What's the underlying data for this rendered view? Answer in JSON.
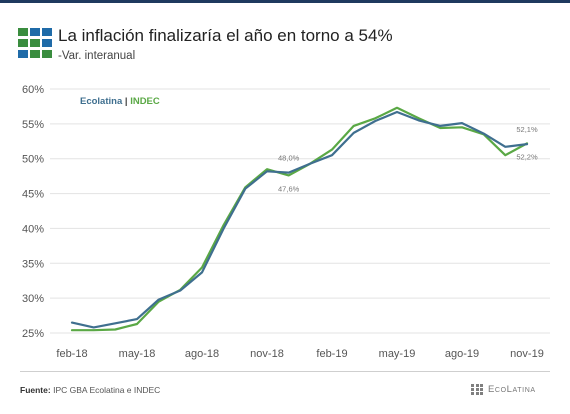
{
  "header": {
    "title": "La inflación finalizaría el año en torno a 54%",
    "subtitle": "-Var. interanual"
  },
  "logo": {
    "icon": "grid-squares-logo",
    "colors": [
      "#3a8d3f",
      "#1f6ba8",
      "#1f6ba8",
      "#3a8d3f",
      "#3a8d3f",
      "#1f6ba8",
      "#1f6ba8",
      "#3a8d3f",
      "#3a8d3f"
    ]
  },
  "footer": {
    "source_label": "Fuente:",
    "source_text": "IPC GBA Ecolatina e INDEC",
    "brand": "EcoLatina"
  },
  "chart_data": {
    "type": "line",
    "ylim": [
      24,
      61
    ],
    "yticks": [
      25,
      30,
      35,
      40,
      45,
      50,
      55,
      60
    ],
    "ytick_labels": [
      "25%",
      "30%",
      "35%",
      "40%",
      "45%",
      "50%",
      "55%",
      "60%"
    ],
    "x": [
      "feb-18",
      "mar-18",
      "abr-18",
      "may-18",
      "jun-18",
      "jul-18",
      "ago-18",
      "sep-18",
      "oct-18",
      "nov-18",
      "dic-18",
      "ene-19",
      "feb-19",
      "mar-19",
      "abr-19",
      "may-19",
      "jun-19",
      "jul-19",
      "ago-19",
      "sep-19",
      "oct-19",
      "nov-19"
    ],
    "xtick_labels": [
      "feb-18",
      "may-18",
      "ago-18",
      "nov-18",
      "feb-19",
      "may-19",
      "ago-19",
      "nov-19"
    ],
    "xtick_indices": [
      0,
      3,
      6,
      9,
      12,
      15,
      18,
      21
    ],
    "legend": {
      "text_a": "Ecolatina",
      "separator": " | ",
      "text_b": "INDEC",
      "position": "top-left"
    },
    "series": [
      {
        "name": "INDEC",
        "color": "#5aa845",
        "values": [
          25.4,
          25.4,
          25.5,
          26.3,
          29.5,
          31.2,
          34.4,
          40.5,
          45.9,
          48.5,
          47.6,
          49.3,
          51.3,
          54.7,
          55.8,
          57.3,
          55.8,
          54.4,
          54.5,
          53.5,
          50.5,
          52.2
        ]
      },
      {
        "name": "Ecolatina",
        "color": "#3f6f8f",
        "values": [
          26.5,
          25.8,
          26.4,
          27.0,
          29.8,
          31.1,
          33.7,
          40.0,
          45.7,
          48.2,
          48.0,
          49.3,
          50.5,
          53.7,
          55.4,
          56.7,
          55.5,
          54.7,
          55.1,
          53.6,
          51.7,
          52.1
        ]
      }
    ],
    "annotations": [
      {
        "text": "48,0%",
        "x_index": 10,
        "value": 48.0,
        "color": "#3f6f8f",
        "side": "above"
      },
      {
        "text": "47,6%",
        "x_index": 10,
        "value": 47.6,
        "color": "#5aa845",
        "side": "below"
      },
      {
        "text": "52,1%",
        "x_index": 21,
        "value": 52.1,
        "color": "#3f6f8f",
        "side": "above"
      },
      {
        "text": "52,2%",
        "x_index": 21,
        "value": 52.2,
        "color": "#5aa845",
        "side": "below"
      }
    ],
    "grid": {
      "horizontal": true,
      "vertical": false
    }
  }
}
